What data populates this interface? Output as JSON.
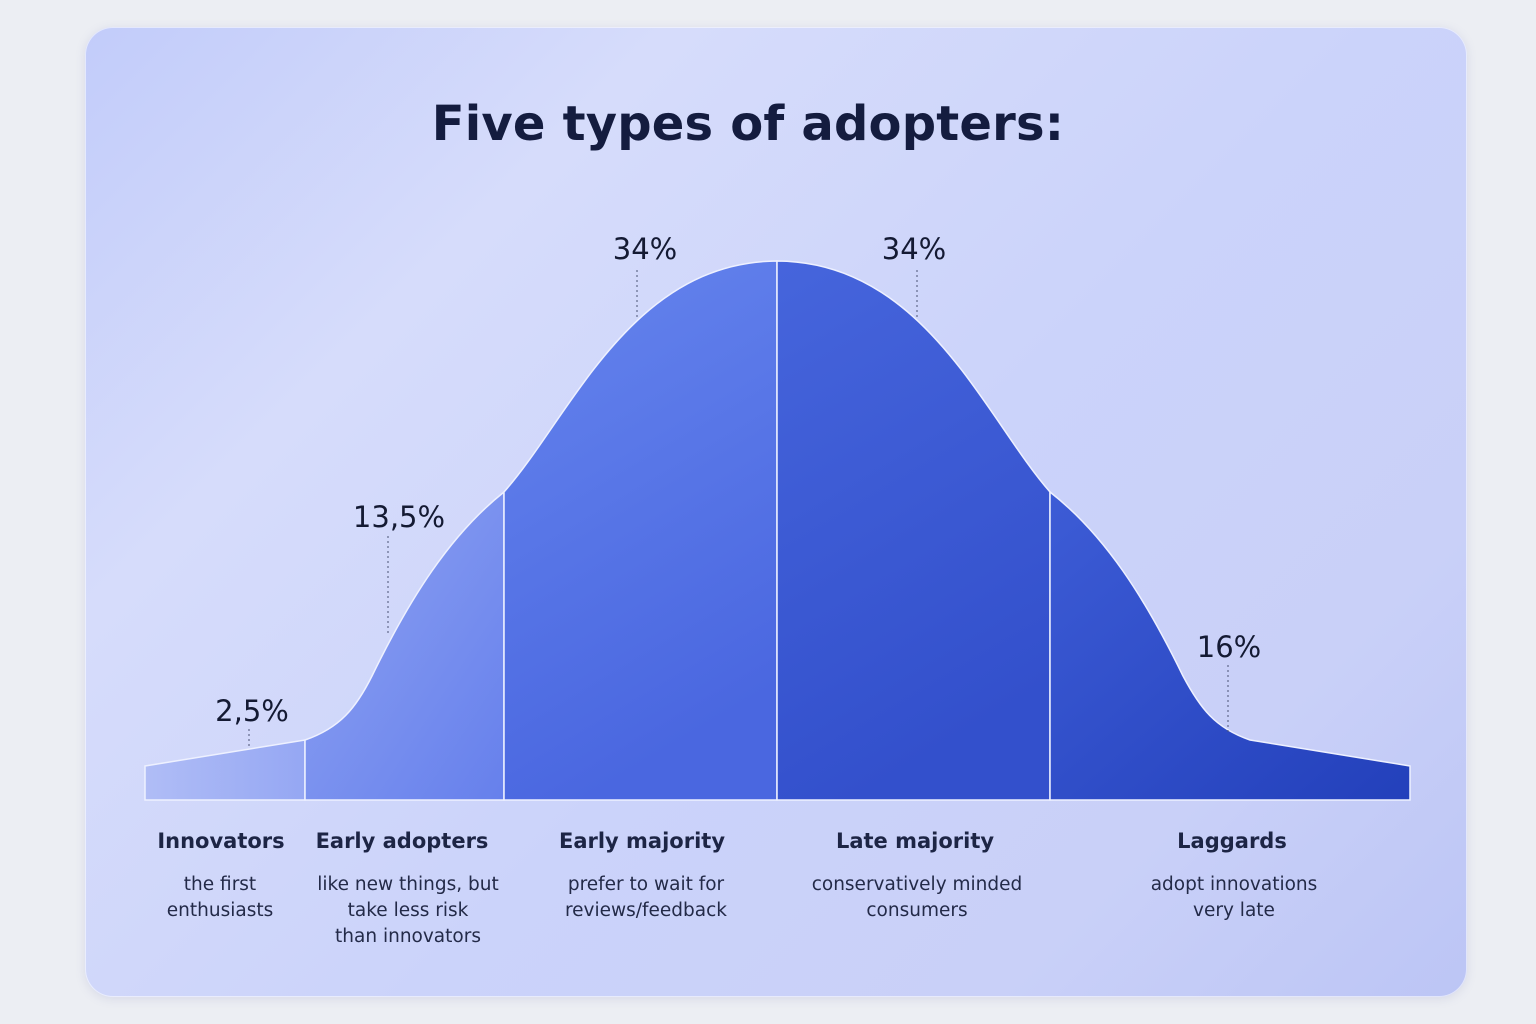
{
  "title": "Five types of adopters:",
  "segments": [
    {
      "name": "Innovators",
      "desc": "the first\nenthusiasts",
      "percent": "2,5%"
    },
    {
      "name": "Early adopters",
      "desc": "like new things, but\ntake less risk\nthan innovators",
      "percent": "13,5%"
    },
    {
      "name": "Early majority",
      "desc": "prefer to wait for\nreviews/feedback",
      "percent": "34%"
    },
    {
      "name": "Late majority",
      "desc": "conservatively minded\nconsumers",
      "percent": "34%"
    },
    {
      "name": "Laggards",
      "desc": "adopt innovations\nvery late",
      "percent": "16%"
    }
  ],
  "colors": {
    "innovators": "#a3b3f5",
    "early_adopters": "#7b93ef",
    "early_majority": "#5673e6",
    "late_majority": "#3d5bd4",
    "laggards": "#2f4cc6",
    "title": "#141c3f"
  }
}
